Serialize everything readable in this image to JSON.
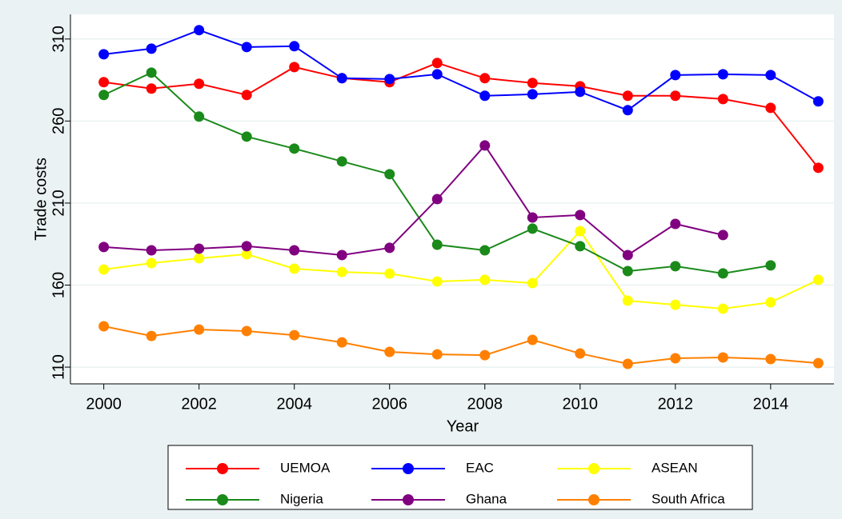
{
  "chart_data": {
    "type": "line",
    "x_label": "Year",
    "y_label": "Trade costs",
    "x": [
      2000,
      2001,
      2002,
      2003,
      2004,
      2005,
      2006,
      2007,
      2008,
      2009,
      2010,
      2011,
      2012,
      2013,
      2014,
      2015
    ],
    "series": [
      {
        "name": "UEMOA",
        "color": "#ff0000",
        "values": [
          283.7,
          279.8,
          282.7,
          275.9,
          292.9,
          286.1,
          283.7,
          295.4,
          286.1,
          283.2,
          281.2,
          275.4,
          275.4,
          273.4,
          268,
          231.5
        ]
      },
      {
        "name": "EAC",
        "color": "#0000ff",
        "values": [
          300.7,
          304.1,
          315.4,
          305.1,
          305.6,
          286.1,
          285.6,
          288.5,
          275.4,
          276.3,
          277.8,
          266.6,
          288,
          288.5,
          288,
          272
        ]
      },
      {
        "name": "ASEAN",
        "color": "#ffff00",
        "values": [
          169.5,
          173.4,
          176.3,
          178.8,
          170,
          168,
          167,
          162.2,
          163.2,
          161.2,
          192.9,
          150.5,
          148,
          145.6,
          149.5,
          163.2
        ]
      },
      {
        "name": "Nigeria",
        "color": "#1a8a1a",
        "values": [
          275.9,
          289.5,
          262.7,
          250.5,
          243.2,
          235.4,
          227.6,
          184.6,
          181.2,
          194.4,
          183.7,
          168.5,
          171.5,
          167.1,
          172,
          null
        ]
      },
      {
        "name": "Ghana",
        "color": "#800080",
        "values": [
          183.2,
          181.2,
          182.2,
          183.7,
          181.2,
          178.3,
          182.7,
          212.4,
          245.1,
          201.2,
          202.7,
          178.3,
          197.3,
          190.5,
          null,
          null
        ]
      },
      {
        "name": "South Africa",
        "color": "#ff8000",
        "values": [
          134.9,
          129,
          132.9,
          132,
          129.5,
          125.1,
          119.3,
          117.8,
          117.3,
          126.6,
          118.3,
          112,
          115.4,
          115.9,
          114.9,
          112.4
        ]
      }
    ],
    "xlim": [
      1999.3,
      2015.33
    ],
    "xticks": [
      2000,
      2002,
      2004,
      2006,
      2008,
      2010,
      2012,
      2014
    ],
    "ylim": [
      99.8,
      325
    ],
    "yticks": [
      110,
      160,
      210,
      260,
      310
    ],
    "grid": true,
    "legend": "bottom",
    "legend_columns": 3
  }
}
